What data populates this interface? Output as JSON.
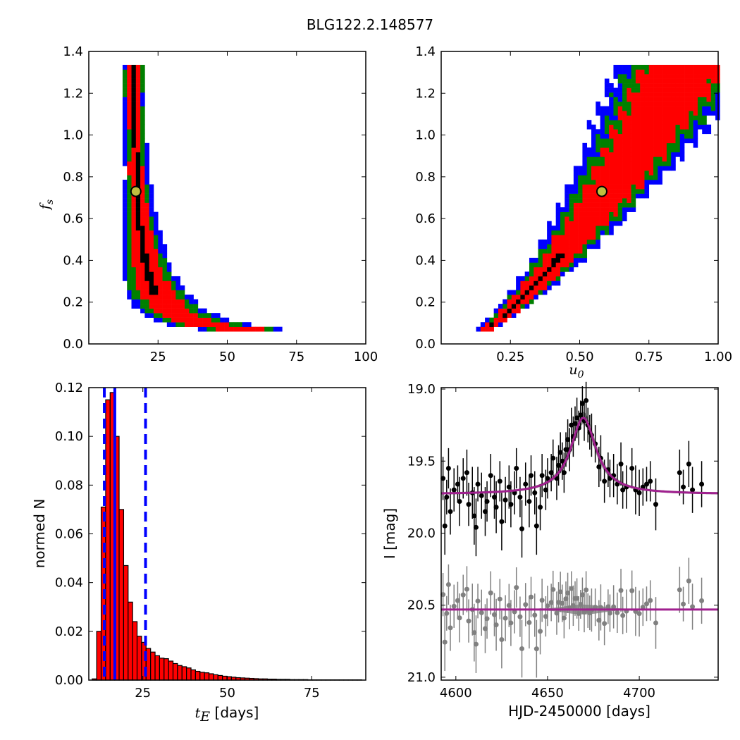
{
  "title": "BLG122.2.148577",
  "chart_data": [
    {
      "id": "fs-vs-tE",
      "type": "heatmap",
      "xlabel": "",
      "ylabel_main": "f",
      "ylabel_sub": "s",
      "xlim": [
        0,
        100
      ],
      "ylim": [
        0.0,
        1.4
      ],
      "xticks": [
        25,
        50,
        75,
        100
      ],
      "yticks": [
        0.0,
        0.2,
        0.4,
        0.6,
        0.8,
        1.0,
        1.2,
        1.4
      ],
      "ytick_labels": [
        "0.0",
        "0.2",
        "0.4",
        "0.6",
        "0.8",
        "1.0",
        "1.2",
        "1.4"
      ],
      "levels_colors": [
        "#0000ff",
        "#008000",
        "#ff0000",
        "#000000"
      ],
      "best_fit": {
        "x": 17,
        "y": 0.73,
        "color": "#bfbf40"
      },
      "band_model": "fs ~ A / (tE - C)",
      "band_params": {
        "A": 2.4,
        "C": 13.5
      }
    },
    {
      "id": "fs-vs-u0",
      "type": "heatmap",
      "xlabel_main": "u",
      "xlabel_sub": "0",
      "xlim": [
        0.0,
        1.0
      ],
      "ylim": [
        0.0,
        1.4
      ],
      "xticks": [
        0.25,
        0.5,
        0.75,
        1.0
      ],
      "xtick_labels": [
        "0.25",
        "0.50",
        "0.75",
        "1.00"
      ],
      "yticks": [
        0.0,
        0.2,
        0.4,
        0.6,
        0.8,
        1.0,
        1.2,
        1.4
      ],
      "ytick_labels": [
        "0.0",
        "0.2",
        "0.4",
        "0.6",
        "0.8",
        "1.0",
        "1.2",
        "1.4"
      ],
      "levels_colors": [
        "#0000ff",
        "#008000",
        "#ff0000",
        "#000000"
      ],
      "best_fit": {
        "x": 0.58,
        "y": 0.73,
        "color": "#bfbf40"
      }
    },
    {
      "id": "tE-histogram",
      "type": "bar",
      "xlabel_main": "t",
      "xlabel_sub": "E",
      "xlabel_rest": " [days]",
      "ylabel": "normed N",
      "xlim": [
        9,
        91
      ],
      "ylim": [
        0.0,
        0.12
      ],
      "xticks": [
        25,
        50,
        75
      ],
      "yticks": [
        0.0,
        0.02,
        0.04,
        0.06,
        0.08,
        0.1,
        0.12
      ],
      "ytick_labels": [
        "0.00",
        "0.02",
        "0.04",
        "0.06",
        "0.08",
        "0.10",
        "0.12"
      ],
      "bin_start": 10,
      "bin_width": 1.33,
      "values": [
        0.0005,
        0.02,
        0.071,
        0.115,
        0.118,
        0.1,
        0.07,
        0.047,
        0.032,
        0.024,
        0.018,
        0.0155,
        0.013,
        0.0115,
        0.01,
        0.009,
        0.0088,
        0.0078,
        0.0068,
        0.006,
        0.0055,
        0.005,
        0.0042,
        0.0036,
        0.0032,
        0.003,
        0.0026,
        0.0022,
        0.0019,
        0.0016,
        0.0014,
        0.0012,
        0.001,
        0.0009,
        0.0008,
        0.0007,
        0.0006,
        0.0005,
        0.0005,
        0.0004,
        0.0004,
        0.0003,
        0.0003,
        0.0003,
        0.0002,
        0.0002,
        0.0002,
        0.0002,
        0.0001,
        0.0001,
        0.0001,
        0.0001,
        0.0001,
        0.0001,
        0.0001,
        0.0001,
        0.0001,
        0.0001,
        0.0001,
        0.0001
      ],
      "bar_color": "#ff0000",
      "vlines": [
        {
          "x": 16.7,
          "style": "solid",
          "color": "#0000ff"
        },
        {
          "x": 13.6,
          "style": "dashed",
          "color": "#0000ff"
        },
        {
          "x": 25.8,
          "style": "dashed",
          "color": "#0000ff"
        }
      ]
    },
    {
      "id": "light-curve",
      "type": "scatter",
      "xlabel": "HJD-2450000 [days]",
      "ylabel": "I [mag]",
      "xlim": [
        4592,
        4743
      ],
      "ylim": [
        21.02,
        18.99
      ],
      "xticks": [
        4600,
        4650,
        4700
      ],
      "yticks": [
        19.0,
        19.5,
        20.0,
        20.5,
        21.0
      ],
      "ytick_labels": [
        "19.0",
        "19.5",
        "20.0",
        "20.5",
        "21.0"
      ],
      "model": {
        "baseline": 19.73,
        "peak": 19.2,
        "t0": 4669.5,
        "width": 8.5,
        "color": "#a0208f"
      },
      "residual_offset": 0.8,
      "data_color": "#000000",
      "residual_color": "#808080",
      "points": [
        [
          4593,
          19.62,
          0.15
        ],
        [
          4594,
          19.95,
          0.2
        ],
        [
          4595,
          19.75,
          0.12
        ],
        [
          4596,
          19.55,
          0.14
        ],
        [
          4597,
          19.85,
          0.16
        ],
        [
          4599,
          19.7,
          0.15
        ],
        [
          4601,
          19.66,
          0.13
        ],
        [
          4602,
          19.78,
          0.17
        ],
        [
          4604,
          19.62,
          0.14
        ],
        [
          4606,
          19.58,
          0.16
        ],
        [
          4607,
          19.8,
          0.15
        ],
        [
          4609,
          19.72,
          0.18
        ],
        [
          4610,
          19.88,
          0.2
        ],
        [
          4611,
          19.96,
          0.2
        ],
        [
          4612,
          19.66,
          0.12
        ],
        [
          4614,
          19.74,
          0.16
        ],
        [
          4616,
          19.85,
          0.17
        ],
        [
          4617,
          19.78,
          0.14
        ],
        [
          4619,
          19.6,
          0.15
        ],
        [
          4621,
          19.75,
          0.15
        ],
        [
          4622,
          19.82,
          0.18
        ],
        [
          4624,
          19.64,
          0.14
        ],
        [
          4625,
          19.92,
          0.2
        ],
        [
          4627,
          19.77,
          0.16
        ],
        [
          4629,
          19.68,
          0.15
        ],
        [
          4630,
          19.8,
          0.16
        ],
        [
          4632,
          19.72,
          0.15
        ],
        [
          4633,
          19.55,
          0.14
        ],
        [
          4635,
          19.75,
          0.14
        ],
        [
          4636,
          19.97,
          0.2
        ],
        [
          4638,
          19.66,
          0.15
        ],
        [
          4640,
          19.78,
          0.18
        ],
        [
          4641,
          19.6,
          0.14
        ],
        [
          4643,
          19.72,
          0.15
        ],
        [
          4644,
          19.95,
          0.2
        ],
        [
          4646,
          19.82,
          0.16
        ],
        [
          4647,
          19.6,
          0.15
        ],
        [
          4649,
          19.7,
          0.14
        ],
        [
          4650,
          19.62,
          0.14
        ],
        [
          4652,
          19.58,
          0.13
        ],
        [
          4653,
          19.48,
          0.13
        ],
        [
          4655,
          19.62,
          0.15
        ],
        [
          4656,
          19.53,
          0.14
        ],
        [
          4657,
          19.44,
          0.14
        ],
        [
          4658,
          19.5,
          0.13
        ],
        [
          4659,
          19.58,
          0.14
        ],
        [
          4660,
          19.42,
          0.12
        ],
        [
          4661,
          19.35,
          0.14
        ],
        [
          4662,
          19.42,
          0.15
        ],
        [
          4663,
          19.25,
          0.12
        ],
        [
          4664,
          19.33,
          0.14
        ],
        [
          4665,
          19.24,
          0.12
        ],
        [
          4666,
          19.2,
          0.14
        ],
        [
          4667,
          19.27,
          0.12
        ],
        [
          4668,
          19.18,
          0.1
        ],
        [
          4669,
          19.1,
          0.12
        ],
        [
          4670,
          19.22,
          0.14
        ],
        [
          4671,
          19.08,
          0.13
        ],
        [
          4672,
          19.25,
          0.12
        ],
        [
          4673,
          19.3,
          0.12
        ],
        [
          4674,
          19.32,
          0.15
        ],
        [
          4676,
          19.38,
          0.13
        ],
        [
          4678,
          19.54,
          0.14
        ],
        [
          4679,
          19.48,
          0.16
        ],
        [
          4681,
          19.64,
          0.15
        ],
        [
          4683,
          19.56,
          0.12
        ],
        [
          4684,
          19.62,
          0.13
        ],
        [
          4686,
          19.6,
          0.15
        ],
        [
          4688,
          19.66,
          0.14
        ],
        [
          4690,
          19.52,
          0.15
        ],
        [
          4691,
          19.7,
          0.13
        ],
        [
          4693,
          19.68,
          0.15
        ],
        [
          4696,
          19.55,
          0.14
        ],
        [
          4698,
          19.7,
          0.17
        ],
        [
          4700,
          19.72,
          0.16
        ],
        [
          4702,
          19.68,
          0.13
        ],
        [
          4704,
          19.66,
          0.12
        ],
        [
          4706,
          19.64,
          0.14
        ],
        [
          4709,
          19.8,
          0.18
        ],
        [
          4722,
          19.58,
          0.16
        ],
        [
          4724,
          19.68,
          0.12
        ],
        [
          4727,
          19.52,
          0.16
        ],
        [
          4729,
          19.7,
          0.16
        ],
        [
          4734,
          19.66,
          0.16
        ]
      ]
    }
  ]
}
